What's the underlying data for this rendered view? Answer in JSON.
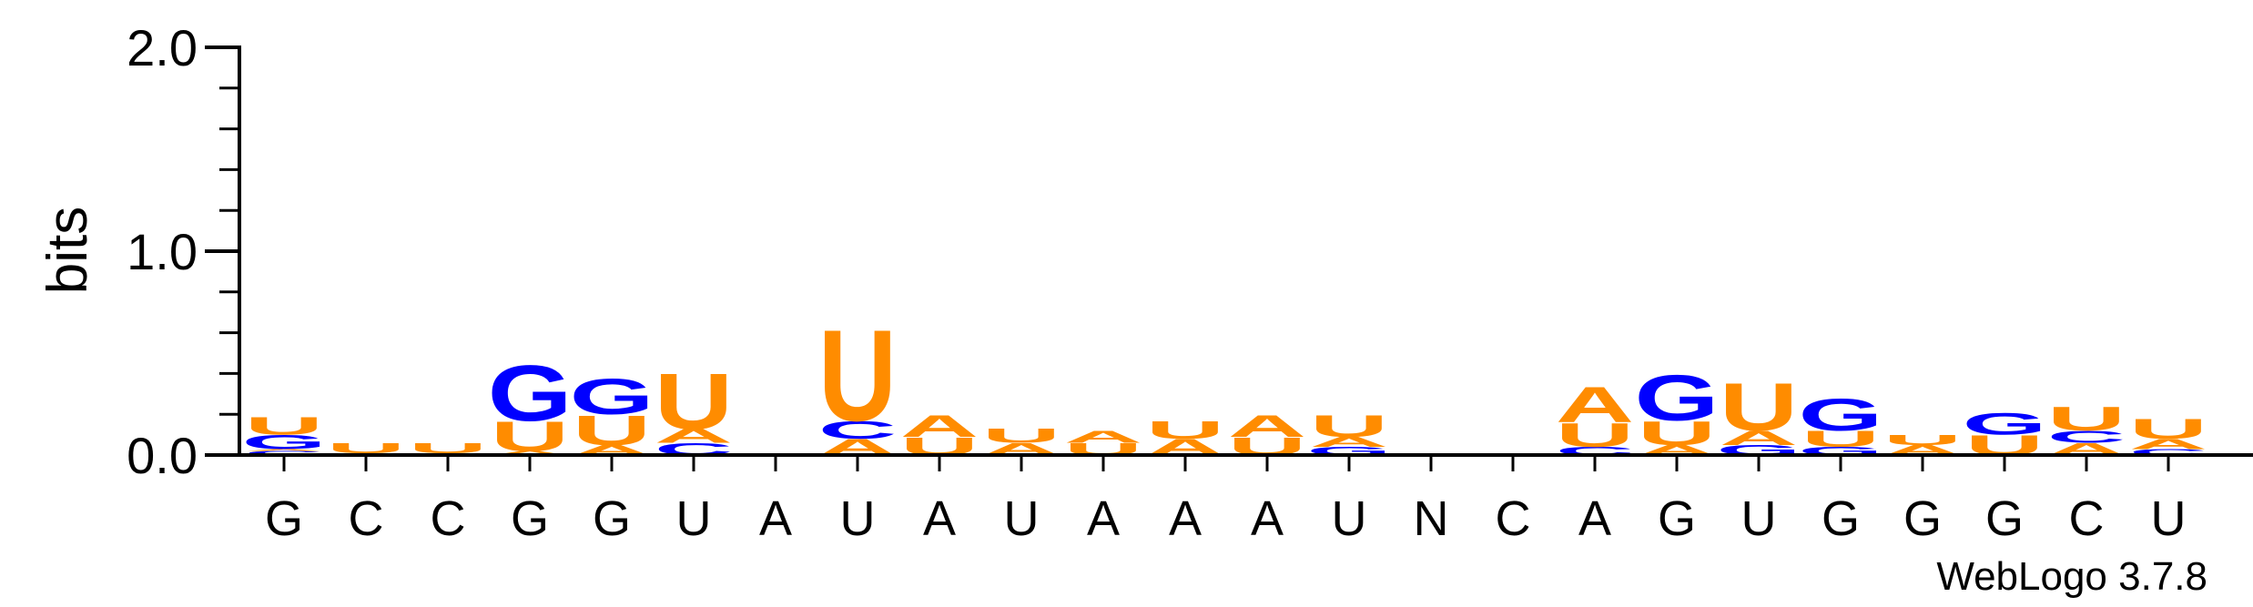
{
  "chart_data": {
    "type": "sequence-logo",
    "ylabel": "bits",
    "ylim": [
      0,
      2.0
    ],
    "yticks": [
      "0.0",
      "1.0",
      "2.0"
    ],
    "positions": [
      "G",
      "C",
      "C",
      "G",
      "G",
      "U",
      "A",
      "U",
      "A",
      "U",
      "A",
      "A",
      "A",
      "U",
      "N",
      "C",
      "A",
      "G",
      "U",
      "G",
      "G",
      "G",
      "C",
      "U"
    ],
    "stacks": [
      [
        {
          "letter": "C",
          "height": 0.02
        },
        {
          "letter": "A",
          "height": 0.01
        },
        {
          "letter": "G",
          "height": 0.07
        },
        {
          "letter": "U",
          "height": 0.09
        }
      ],
      [
        {
          "letter": "A",
          "height": 0.01
        },
        {
          "letter": "U",
          "height": 0.05
        }
      ],
      [
        {
          "letter": "A",
          "height": 0.01
        },
        {
          "letter": "U",
          "height": 0.05
        }
      ],
      [
        {
          "letter": "A",
          "height": 0.02
        },
        {
          "letter": "U",
          "height": 0.15
        },
        {
          "letter": "G",
          "height": 0.28
        }
      ],
      [
        {
          "letter": "A",
          "height": 0.05
        },
        {
          "letter": "U",
          "height": 0.15
        },
        {
          "letter": "G",
          "height": 0.18
        }
      ],
      [
        {
          "letter": "C",
          "height": 0.06
        },
        {
          "letter": "A",
          "height": 0.07
        },
        {
          "letter": "U",
          "height": 0.28
        }
      ],
      [],
      [
        {
          "letter": "A",
          "height": 0.08
        },
        {
          "letter": "C",
          "height": 0.09
        },
        {
          "letter": "U",
          "height": 0.46
        }
      ],
      [
        {
          "letter": "U",
          "height": 0.09
        },
        {
          "letter": "A",
          "height": 0.11
        }
      ],
      [
        {
          "letter": "A",
          "height": 0.06
        },
        {
          "letter": "U",
          "height": 0.07
        }
      ],
      [
        {
          "letter": "U",
          "height": 0.06
        },
        {
          "letter": "A",
          "height": 0.06
        }
      ],
      [
        {
          "letter": "A",
          "height": 0.08
        },
        {
          "letter": "U",
          "height": 0.09
        }
      ],
      [
        {
          "letter": "U",
          "height": 0.09
        },
        {
          "letter": "A",
          "height": 0.11
        }
      ],
      [
        {
          "letter": "G",
          "height": 0.04
        },
        {
          "letter": "A",
          "height": 0.05
        },
        {
          "letter": "U",
          "height": 0.11
        }
      ],
      [],
      [],
      [
        {
          "letter": "C",
          "height": 0.04
        },
        {
          "letter": "U",
          "height": 0.12
        },
        {
          "letter": "A",
          "height": 0.18
        }
      ],
      [
        {
          "letter": "A",
          "height": 0.05
        },
        {
          "letter": "U",
          "height": 0.12
        },
        {
          "letter": "G",
          "height": 0.23
        }
      ],
      [
        {
          "letter": "G",
          "height": 0.05
        },
        {
          "letter": "A",
          "height": 0.07
        },
        {
          "letter": "U",
          "height": 0.24
        }
      ],
      [
        {
          "letter": "G",
          "height": 0.04
        },
        {
          "letter": "U",
          "height": 0.08
        },
        {
          "letter": "G",
          "height": 0.16
        }
      ],
      [
        {
          "letter": "A",
          "height": 0.05
        },
        {
          "letter": "U",
          "height": 0.05
        }
      ],
      [
        {
          "letter": "U",
          "height": 0.1
        },
        {
          "letter": "G",
          "height": 0.11
        }
      ],
      [
        {
          "letter": "A",
          "height": 0.06
        },
        {
          "letter": "C",
          "height": 0.06
        },
        {
          "letter": "U",
          "height": 0.12
        }
      ],
      [
        {
          "letter": "C",
          "height": 0.03
        },
        {
          "letter": "A",
          "height": 0.05
        },
        {
          "letter": "U",
          "height": 0.1
        }
      ]
    ],
    "colors": {
      "A": "#ff8c00",
      "U": "#ff8c00",
      "C": "#0000ff",
      "G": "#0000ff"
    }
  },
  "credit": "WebLogo 3.7.8"
}
